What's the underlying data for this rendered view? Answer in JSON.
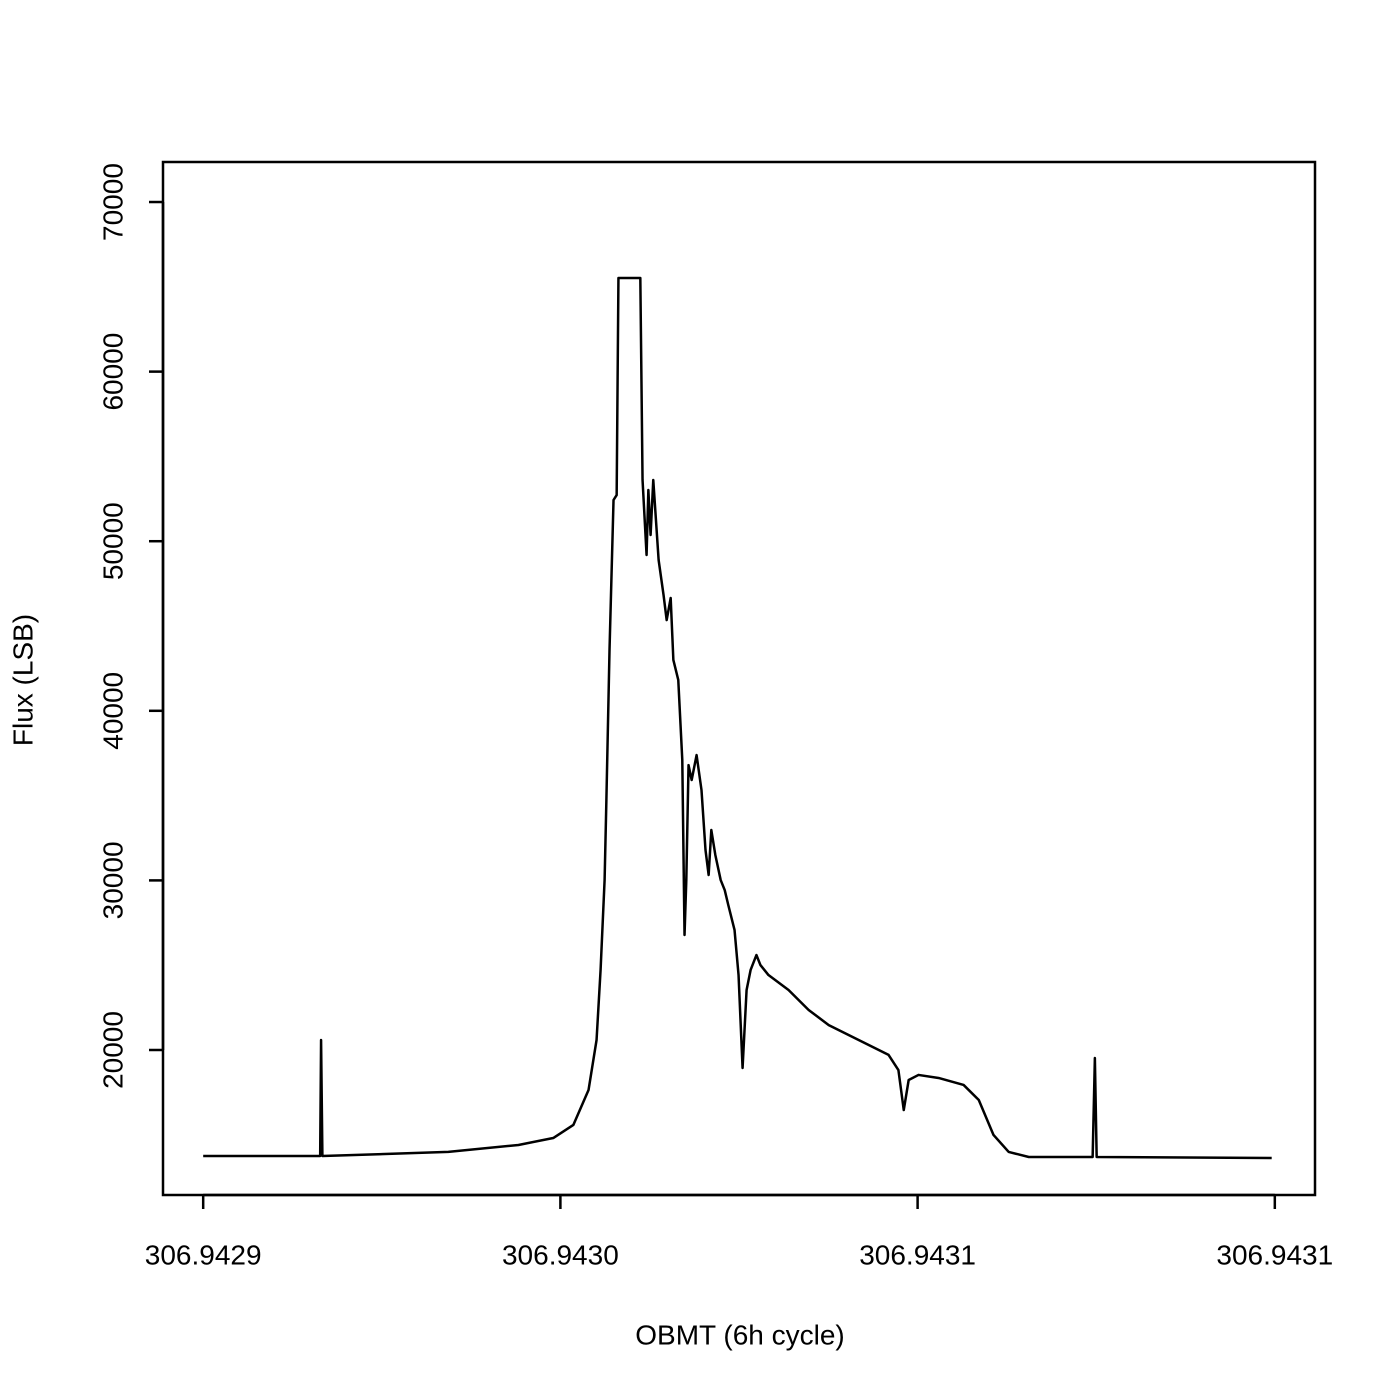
{
  "chart_data": {
    "type": "line",
    "xlabel": "OBMT (6h cycle)",
    "ylabel": "Flux (LSB)",
    "color": "#000000",
    "x": [
      306.94289,
      306.9429162,
      306.9429164,
      306.9429167,
      306.9429449,
      306.9429606,
      306.9429684,
      306.9429729,
      306.9429763,
      306.9429781,
      306.942979,
      306.9429799,
      306.9429803,
      306.942981,
      306.9429819,
      306.9429826,
      306.942983,
      306.9429879,
      306.9429884,
      306.9429893,
      306.9429897,
      306.9429902,
      306.9429908,
      306.942992,
      306.9429931,
      306.9429938,
      306.9429947,
      306.9429953,
      306.9429964,
      306.9429973,
      306.9429978,
      306.9429982,
      306.9429987,
      306.9429994,
      306.9430005,
      306.9430016,
      306.9430025,
      306.9430032,
      306.9430038,
      306.9430047,
      306.9430059,
      306.9430068,
      306.9430076,
      306.943009,
      306.9430099,
      306.9430108,
      306.9430117,
      306.9430126,
      306.9430139,
      306.9430148,
      306.9430166,
      306.9430211,
      306.9430256,
      306.9430301,
      306.9430368,
      306.9430435,
      306.9430457,
      306.9430469,
      306.943048,
      306.9430502,
      306.9430547,
      306.9430603,
      306.9430637,
      306.943067,
      306.9430704,
      306.9430749,
      306.9430892,
      306.9430897,
      306.9430901,
      306.9431293
    ],
    "values": [
      13750,
      13750,
      20590,
      13750,
      13990,
      14400,
      14810,
      15580,
      17640,
      20590,
      24720,
      30020,
      34740,
      43580,
      52430,
      52720,
      65520,
      65520,
      53610,
      49190,
      53020,
      50370,
      53610,
      48890,
      46830,
      45350,
      46650,
      43000,
      41820,
      37100,
      26780,
      30020,
      36800,
      35920,
      37390,
      35330,
      31790,
      30320,
      32970,
      31500,
      30020,
      29430,
      28550,
      27080,
      24420,
      18940,
      23540,
      24720,
      25600,
      25010,
      24420,
      23540,
      22360,
      21470,
      20590,
      19710,
      18820,
      16460,
      18230,
      18530,
      18350,
      17940,
      17050,
      14990,
      13990,
      13690,
      13690,
      19530,
      13690,
      13630
    ],
    "xlim": [
      306.942881,
      306.943139
    ],
    "ylim": [
      11450,
      72360
    ],
    "xticks": [
      {
        "value": 306.94289,
        "label": "306.9429"
      },
      {
        "value": 306.94297,
        "label": "306.9430"
      },
      {
        "value": 306.94305,
        "label": "306.9431"
      },
      {
        "value": 306.94313,
        "label": "306.9431"
      }
    ],
    "yticks": [
      20000,
      30000,
      40000,
      50000,
      60000,
      70000
    ]
  }
}
